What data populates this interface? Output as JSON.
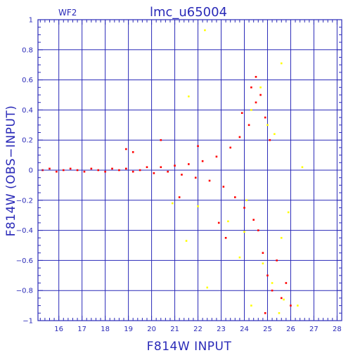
{
  "chart_data": {
    "type": "scatter",
    "title": "lmc_u65004",
    "subtitle": "WF2",
    "xlabel": "F814W INPUT",
    "ylabel": "F814W (OBS−INPUT)",
    "xlim": [
      15.1,
      28.2
    ],
    "ylim": [
      -1,
      1
    ],
    "grid": true,
    "x_ticks": [
      "16",
      "17",
      "18",
      "19",
      "20",
      "21",
      "22",
      "23",
      "24",
      "25",
      "26",
      "27",
      "28"
    ],
    "y_ticks": [
      "1",
      "0.8",
      "0.6",
      "0.4",
      "0.2",
      "0",
      "−0.2",
      "−0.4",
      "−0.6",
      "−0.8",
      "−1"
    ],
    "colors": {
      "axis": "#2a2ab8",
      "grid": "#2a2ab8",
      "primary_points": "#ff0000",
      "secondary_points": "#ffff00"
    },
    "series": [
      {
        "color": "#ff0000",
        "points": [
          [
            15.3,
            0.0
          ],
          [
            15.6,
            0.01
          ],
          [
            15.9,
            -0.01
          ],
          [
            16.2,
            0.0
          ],
          [
            16.5,
            0.01
          ],
          [
            16.8,
            0.0
          ],
          [
            17.1,
            -0.01
          ],
          [
            17.4,
            0.01
          ],
          [
            17.7,
            0.0
          ],
          [
            18.0,
            -0.01
          ],
          [
            18.3,
            0.01
          ],
          [
            18.6,
            0.0
          ],
          [
            18.9,
            0.01
          ],
          [
            19.2,
            -0.01
          ],
          [
            19.5,
            0.0
          ],
          [
            19.8,
            0.02
          ],
          [
            20.1,
            -0.02
          ],
          [
            20.4,
            0.02
          ],
          [
            20.7,
            -0.01
          ],
          [
            21.0,
            0.03
          ],
          [
            21.3,
            -0.03
          ],
          [
            21.6,
            0.04
          ],
          [
            21.9,
            -0.05
          ],
          [
            22.2,
            0.06
          ],
          [
            22.5,
            -0.07
          ],
          [
            22.8,
            0.09
          ],
          [
            23.1,
            -0.11
          ],
          [
            23.4,
            0.15
          ],
          [
            23.6,
            -0.18
          ],
          [
            23.8,
            0.22
          ],
          [
            24.0,
            -0.25
          ],
          [
            24.2,
            0.3
          ],
          [
            24.4,
            -0.33
          ],
          [
            24.5,
            0.45
          ],
          [
            24.6,
            -0.4
          ],
          [
            24.7,
            0.5
          ],
          [
            24.8,
            -0.55
          ],
          [
            24.9,
            0.35
          ],
          [
            25.0,
            -0.7
          ],
          [
            25.1,
            0.2
          ],
          [
            25.2,
            -0.8
          ],
          [
            25.4,
            -0.6
          ],
          [
            25.6,
            -0.85
          ],
          [
            25.8,
            -0.75
          ],
          [
            26.0,
            -0.9
          ],
          [
            24.5,
            0.62
          ],
          [
            24.3,
            0.55
          ],
          [
            23.9,
            0.38
          ],
          [
            21.2,
            -0.18
          ],
          [
            19.2,
            0.12
          ],
          [
            18.9,
            0.14
          ],
          [
            20.4,
            0.2
          ],
          [
            22.9,
            -0.35
          ],
          [
            23.2,
            -0.45
          ],
          [
            22.0,
            0.16
          ],
          [
            24.9,
            -0.95
          ]
        ]
      },
      {
        "color": "#ffff00",
        "points": [
          [
            22.3,
            0.93
          ],
          [
            25.6,
            0.71
          ],
          [
            24.7,
            0.55
          ],
          [
            21.6,
            0.49
          ],
          [
            24.3,
            0.4
          ],
          [
            25.0,
            0.3
          ],
          [
            25.3,
            0.24
          ],
          [
            26.5,
            0.02
          ],
          [
            22.0,
            -0.24
          ],
          [
            20.9,
            -0.22
          ],
          [
            21.5,
            -0.47
          ],
          [
            23.3,
            -0.34
          ],
          [
            24.0,
            -0.41
          ],
          [
            24.8,
            -0.62
          ],
          [
            25.2,
            -0.75
          ],
          [
            25.7,
            -0.86
          ],
          [
            22.4,
            -0.78
          ],
          [
            24.3,
            -0.9
          ],
          [
            25.5,
            -0.95
          ],
          [
            26.3,
            -0.9
          ],
          [
            24.1,
            -0.2
          ],
          [
            23.8,
            -0.58
          ],
          [
            25.6,
            -0.45
          ],
          [
            25.9,
            -0.28
          ]
        ]
      }
    ]
  }
}
